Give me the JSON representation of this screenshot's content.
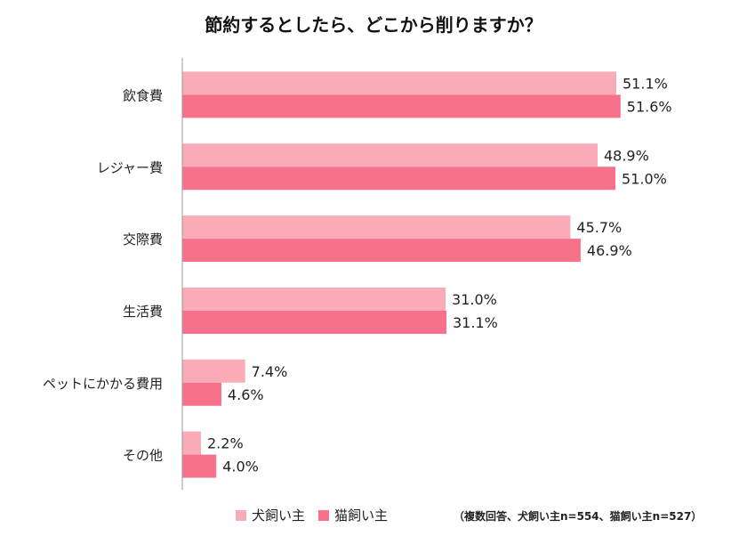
{
  "chart_data": {
    "type": "bar",
    "orientation": "horizontal",
    "title": "節約するとしたら、どこから削りますか？",
    "categories": [
      "飲食費",
      "レジャー費",
      "交際費",
      "生活費",
      "ペットにかかる費用",
      "その他"
    ],
    "series": [
      {
        "name": "犬飼い主",
        "values": [
          51.1,
          48.9,
          45.7,
          31.0,
          7.4,
          2.2
        ],
        "color": "#FAABB8"
      },
      {
        "name": "猫飼い主",
        "values": [
          51.6,
          51.0,
          46.9,
          31.1,
          4.6,
          4.0
        ],
        "color": "#F7718A"
      }
    ],
    "unit": "%",
    "xlim": [
      0,
      65
    ],
    "grid": false,
    "legend_position": "bottom",
    "note": "（複数回答、犬飼い主n=554、猫飼い主n=527）"
  }
}
